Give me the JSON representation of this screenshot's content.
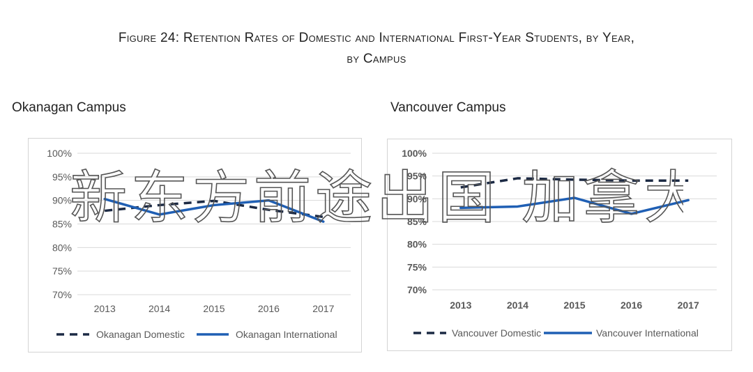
{
  "figure_title_line1": "Figure 24: Retention Rates of Domestic and International First-Year Students, by Year,",
  "figure_title_line2": "by Campus",
  "watermark_text": "新东方前途出国 加拿大",
  "chart_data": [
    {
      "type": "line",
      "title": "Okanagan Campus",
      "categories": [
        "2013",
        "2014",
        "2015",
        "2016",
        "2017"
      ],
      "ylim": [
        70,
        100
      ],
      "yticks": [
        "100%",
        "95%",
        "90%",
        "85%",
        "80%",
        "75%",
        "70%"
      ],
      "ytick_values": [
        100,
        95,
        90,
        85,
        80,
        75,
        70
      ],
      "grid": true,
      "legend_position": "bottom",
      "series": [
        {
          "name": "Okanagan Domestic",
          "values": [
            87.8,
            89.0,
            89.9,
            88.0,
            86.5
          ],
          "style": "dashed",
          "color": "#1c2a44"
        },
        {
          "name": "Okanagan International",
          "values": [
            90.3,
            87.0,
            89.0,
            90.0,
            85.5
          ],
          "style": "solid",
          "color": "#1f5fb4"
        }
      ]
    },
    {
      "type": "line",
      "title": "Vancouver Campus",
      "categories": [
        "2013",
        "2014",
        "2015",
        "2016",
        "2017"
      ],
      "ylim": [
        70,
        100
      ],
      "yticks": [
        "100%",
        "95%",
        "90%",
        "85%",
        "80%",
        "75%",
        "70%"
      ],
      "ytick_values": [
        100,
        95,
        90,
        85,
        80,
        75,
        70
      ],
      "grid": true,
      "legend_position": "bottom",
      "series": [
        {
          "name": "Vancouver Domestic",
          "values": [
            92.5,
            94.5,
            94.2,
            94.0,
            94.0
          ],
          "style": "dashed",
          "color": "#1c2a44"
        },
        {
          "name": "Vancouver International",
          "values": [
            88.0,
            88.3,
            90.2,
            86.7,
            89.7
          ],
          "style": "solid",
          "color": "#1f5fb4"
        }
      ]
    }
  ]
}
